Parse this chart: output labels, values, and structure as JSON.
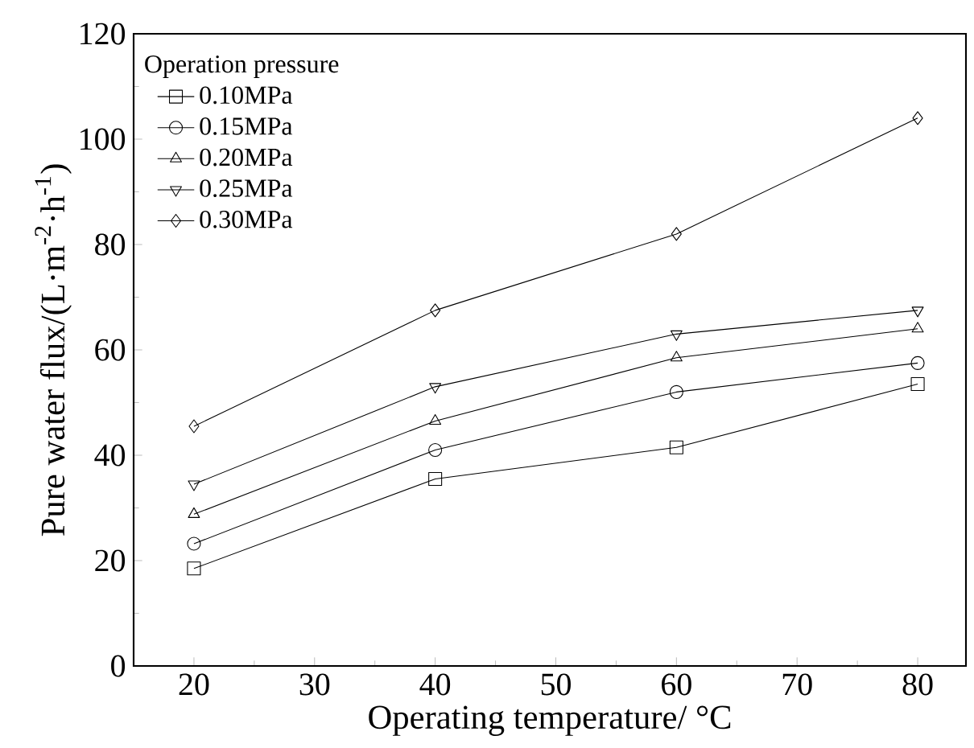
{
  "chart_data": {
    "type": "line",
    "xlabel": "Operating temperature/ °C",
    "ylabel": "Pure water flux/(L·m$^{-2}$·h$^{-1}$)",
    "legend_title": "Operation pressure",
    "x": [
      20,
      40,
      60,
      80
    ],
    "series": [
      {
        "name": "0.10MPa",
        "color": "#000000",
        "marker": "square",
        "values": [
          18.5,
          35.5,
          41.5,
          53.5
        ]
      },
      {
        "name": "0.15MPa",
        "color": "#000000",
        "marker": "circle",
        "values": [
          23.2,
          41,
          52,
          57.5
        ]
      },
      {
        "name": "0.20MPa",
        "color": "#000000",
        "marker": "triangle",
        "values": [
          28.8,
          46.5,
          58.5,
          64
        ]
      },
      {
        "name": "0.25MPa",
        "color": "#000000",
        "marker": "triangle-down",
        "values": [
          34.5,
          53,
          63,
          67.5
        ]
      },
      {
        "name": "0.30MPa",
        "color": "#000000",
        "marker": "diamond",
        "values": [
          45.5,
          67.5,
          82,
          104
        ]
      }
    ],
    "xlim": [
      15,
      84
    ],
    "ylim": [
      0,
      120
    ],
    "xticks": [
      20,
      30,
      40,
      50,
      60,
      70,
      80
    ],
    "yticks": [
      0,
      20,
      40,
      60,
      80,
      100,
      120
    ],
    "grid": false,
    "legend": "top left",
    "line_style": "solid"
  }
}
